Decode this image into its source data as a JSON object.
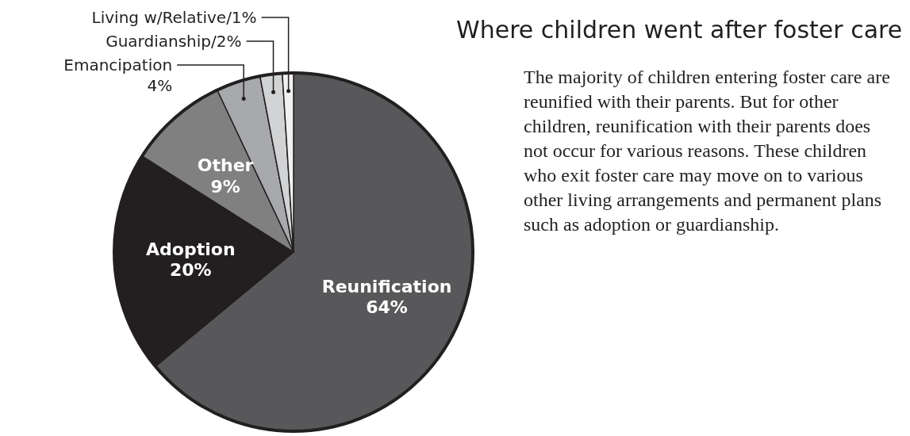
{
  "chart_data": {
    "type": "pie",
    "title": "Where children went after foster care",
    "categories": [
      "Reunification",
      "Adoption",
      "Other",
      "Emancipation",
      "Guardianship/",
      "Living w/Relative/"
    ],
    "values": [
      64,
      20,
      9,
      4,
      2,
      1
    ],
    "value_labels": [
      "64%",
      "20%",
      "9%",
      "4%",
      "2%",
      "1%"
    ],
    "colors": [
      "#58585a",
      "#231f20",
      "#808080",
      "#a7a9ac",
      "#d1d3d4",
      "#f1f1f2"
    ],
    "annotations": [
      "The majority of children entering foster care are reunified with their parents. But for other children, reunification with their parents does not occur for various reasons. These children who exit foster care may move on to various other living arrangements and permanent plans such as adoption or guardianship."
    ]
  }
}
